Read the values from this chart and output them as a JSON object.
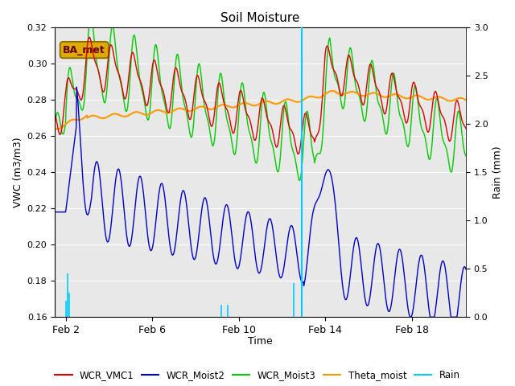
{
  "title": "Soil Moisture",
  "ylabel_left": "VWC (m3/m3)",
  "ylabel_right": "Rain (mm)",
  "xlabel": "Time",
  "ylim_left": [
    0.16,
    0.32
  ],
  "ylim_right": [
    0.0,
    3.0
  ],
  "bg_color": "#e8e8e8",
  "annotation_label": "BA_met",
  "annotation_fg": "#660000",
  "annotation_bg": "#ddaa00",
  "annotation_edge": "#886600",
  "colors": {
    "WCR_VMC1": "#dd0000",
    "WCR_Moist2": "#0000cc",
    "WCR_Moist3": "#00cc00",
    "Theta_moist": "#ff9900",
    "Rain": "#00ccff"
  },
  "xtick_labels": [
    "Feb 2",
    "Feb 6",
    "Feb 10",
    "Feb 14",
    "Feb 18"
  ],
  "xtick_positions": [
    1,
    5,
    9,
    13,
    17
  ],
  "xlim": [
    0.5,
    19.5
  ],
  "rain_events": [
    [
      1.0,
      0.17
    ],
    [
      1.1,
      0.45
    ],
    [
      1.18,
      0.25
    ],
    [
      8.2,
      0.13
    ],
    [
      8.5,
      0.13
    ],
    [
      11.55,
      0.35
    ],
    [
      11.9,
      3.0
    ]
  ],
  "rain_line_x": 11.9
}
